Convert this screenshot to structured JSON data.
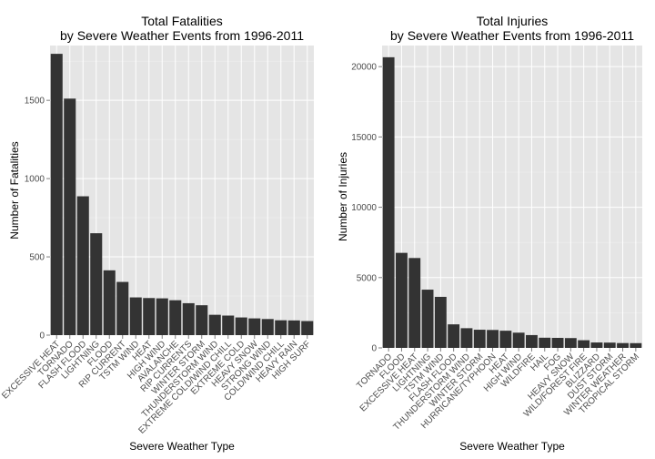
{
  "chart_data": [
    {
      "type": "bar",
      "title": "Total Fatalities",
      "subtitle": "by Severe Weather Events from 1996-2011",
      "xlabel": "Severe Weather Type",
      "ylabel": "Number of Fatalities",
      "ylim": [
        0,
        1850
      ],
      "yticks": [
        0,
        500,
        1000,
        1500
      ],
      "grid": true,
      "categories": [
        "EXCESSIVE HEAT",
        "TORNADO",
        "FLASH FLOOD",
        "LIGHTNING",
        "FLOOD",
        "RIP CURRENT",
        "TSTM WIND",
        "HEAT",
        "HIGH WIND",
        "AVALANCHE",
        "RIP CURRENTS",
        "WINTER STORM",
        "THUNDERSTORM WIND",
        "EXTREME COLD/WIND CHILL",
        "EXTREME COLD",
        "HEAVY SNOW",
        "STRONG WIND",
        "COLD/WIND CHILL",
        "HEAVY RAIN",
        "HIGH SURF"
      ],
      "values": [
        1797,
        1511,
        887,
        651,
        414,
        340,
        241,
        237,
        235,
        223,
        204,
        191,
        130,
        125,
        113,
        107,
        103,
        95,
        94,
        90
      ]
    },
    {
      "type": "bar",
      "title": "Total Injuries",
      "subtitle": "by Severe Weather Events from 1996-2011",
      "xlabel": "Severe Weather Type",
      "ylabel": "Number of Injuries",
      "ylim": [
        0,
        21500
      ],
      "yticks": [
        0,
        5000,
        10000,
        15000,
        20000
      ],
      "grid": true,
      "categories": [
        "TORNADO",
        "FLOOD",
        "EXCESSIVE HEAT",
        "LIGHTNING",
        "TSTM WIND",
        "FLASH FLOOD",
        "THUNDERSTORM WIND",
        "WINTER STORM",
        "HURRICANE/TYPHOON",
        "HEAT",
        "HIGH WIND",
        "WILDFIRE",
        "HAIL",
        "FOG",
        "HEAVY SNOW",
        "WILD/FOREST FIRE",
        "BLIZZARD",
        "DUST STORM",
        "WINTER WEATHER",
        "TROPICAL STORM"
      ],
      "values": [
        20667,
        6758,
        6391,
        4141,
        3629,
        1674,
        1400,
        1292,
        1275,
        1222,
        1083,
        911,
        723,
        712,
        698,
        545,
        385,
        376,
        343,
        338
      ]
    }
  ]
}
